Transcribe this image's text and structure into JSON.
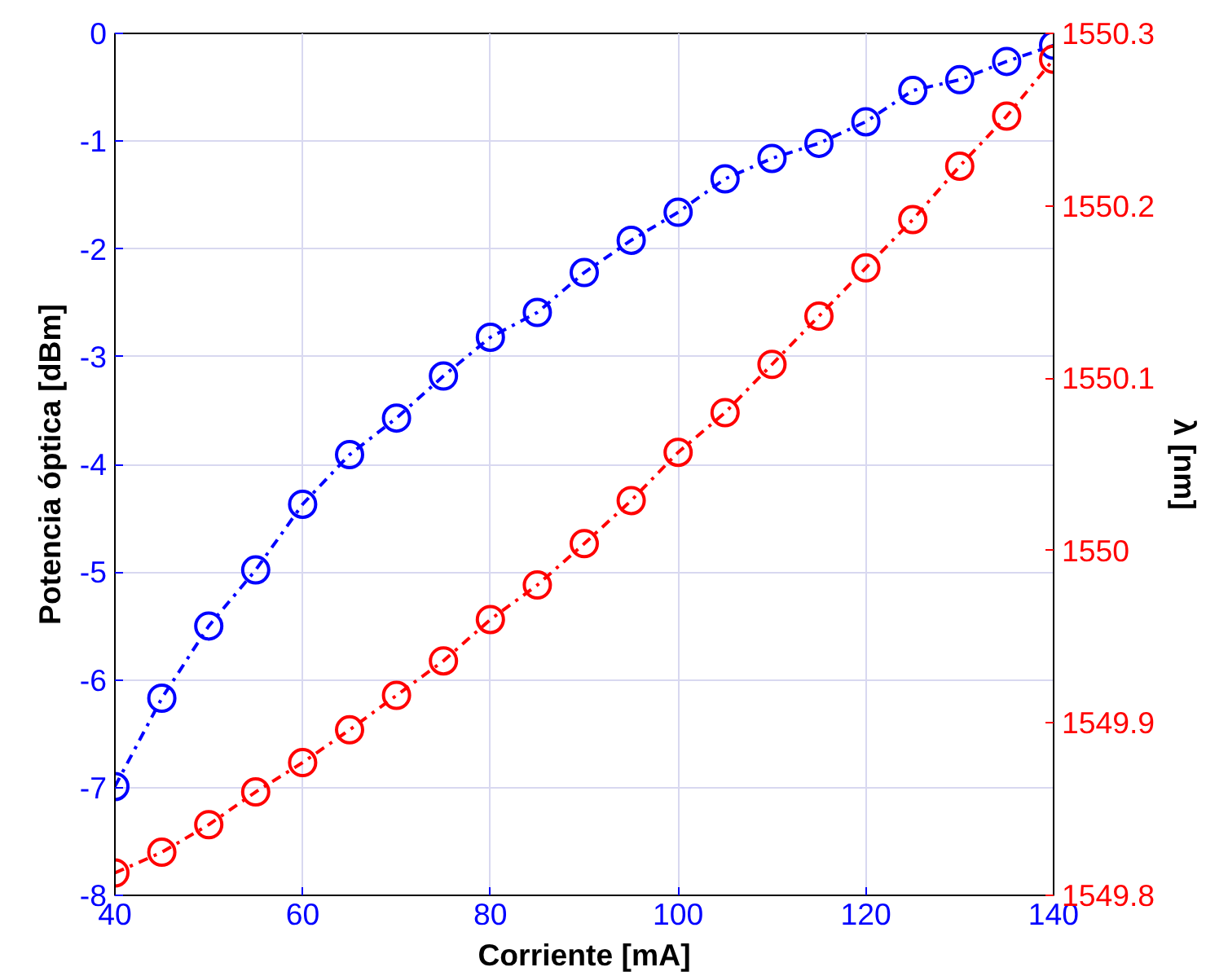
{
  "chart_data": {
    "type": "line",
    "xlabel": "Corriente [mA]",
    "ylabel": "Potencia óptica [dBm]",
    "y2label": "λ [nm]",
    "x": [
      40,
      45,
      50,
      55,
      60,
      65,
      70,
      75,
      80,
      85,
      90,
      95,
      100,
      105,
      110,
      115,
      120,
      125,
      130,
      135,
      140
    ],
    "xlim": [
      40,
      140
    ],
    "xticks": [
      40,
      60,
      80,
      100,
      120,
      140
    ],
    "ylim": [
      -8,
      0
    ],
    "yticks": [
      -8,
      -7,
      -6,
      -5,
      -4,
      -3,
      -2,
      -1,
      0
    ],
    "y2lim": [
      1549.8,
      1550.3
    ],
    "y2ticks": [
      {
        "value": 1549.8,
        "label": "1549.8"
      },
      {
        "value": 1549.9,
        "label": "1549.9"
      },
      {
        "value": 1550,
        "label": "1550"
      },
      {
        "value": 1550.1,
        "label": "1550.1"
      },
      {
        "value": 1550.2,
        "label": "1550.2"
      },
      {
        "value": 1550.3,
        "label": "1550.3"
      }
    ],
    "grid": true,
    "marker": "circle",
    "line_style": "dashed",
    "series": [
      {
        "color": "#0000ff",
        "values": [
          -6.99,
          -6.17,
          -5.5,
          -4.98,
          -4.37,
          -3.91,
          -3.57,
          -3.18,
          -2.82,
          -2.59,
          -2.22,
          -1.92,
          -1.66,
          -1.35,
          -1.16,
          -1.02,
          -0.82,
          -0.53,
          -0.43,
          -0.26,
          -0.11
        ]
      },
      {
        "color": "#ff0000",
        "axis": "y2",
        "values": [
          1549.813,
          1549.825,
          1549.841,
          1549.86,
          1549.877,
          1549.896,
          1549.916,
          1549.936,
          1549.96,
          1549.98,
          1550.004,
          1550.029,
          1550.057,
          1550.08,
          1550.108,
          1550.136,
          1550.164,
          1550.192,
          1550.223,
          1550.252,
          1550.285
        ]
      }
    ]
  }
}
